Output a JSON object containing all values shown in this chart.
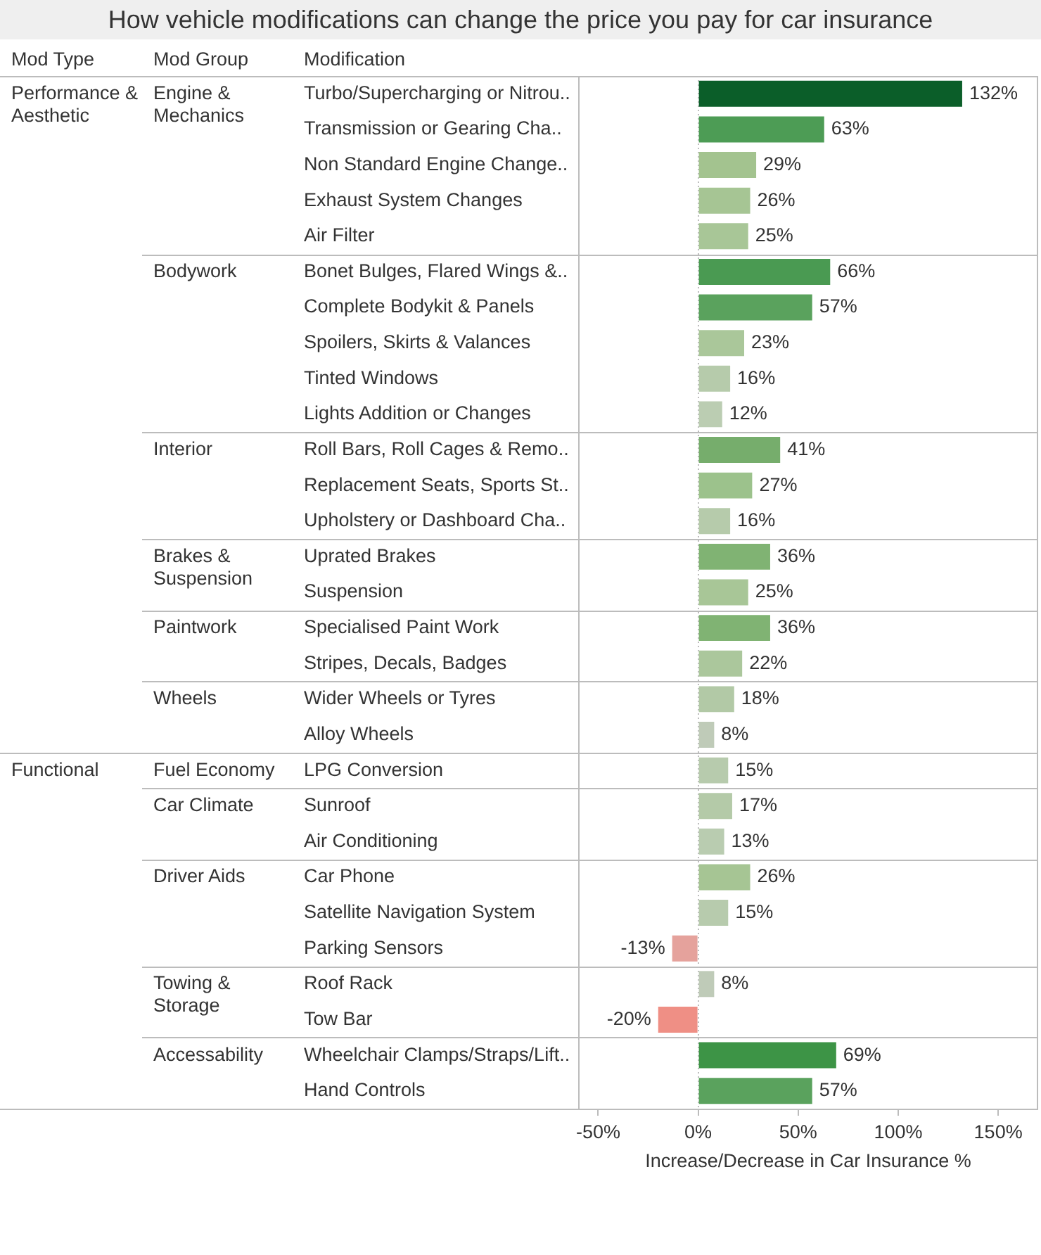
{
  "chart_data": {
    "type": "bar",
    "orientation": "horizontal",
    "title": "How vehicle modifications can change the price you pay for car insurance",
    "xlabel": "Increase/Decrease in Car Insurance %",
    "ylabel": "Modification",
    "categories": [
      "Turbo/Supercharging or Nitrou..",
      "Transmission or Gearing Cha..",
      "Non Standard Engine Change..",
      "Exhaust System Changes",
      "Air Filter",
      "Bonet Bulges, Flared Wings &..",
      "Complete Bodykit & Panels",
      "Spoilers, Skirts & Valances",
      "Tinted Windows",
      "Lights Addition or Changes",
      "Roll Bars, Roll Cages & Remo..",
      "Replacement Seats, Sports St..",
      "Upholstery or Dashboard Cha..",
      "Uprated Brakes",
      "Suspension",
      "Specialised Paint Work",
      "Stripes, Decals, Badges",
      "Wider Wheels or Tyres",
      "Alloy Wheels",
      "LPG Conversion",
      "Sunroof",
      "Air Conditioning",
      "Car Phone",
      "Satellite Navigation System",
      "Parking Sensors",
      "Roof Rack",
      "Tow Bar",
      "Wheelchair Clamps/Straps/Lift..",
      "Hand Controls"
    ],
    "values": [
      132,
      63,
      29,
      26,
      25,
      66,
      57,
      23,
      16,
      12,
      41,
      27,
      16,
      36,
      25,
      36,
      22,
      18,
      8,
      15,
      17,
      13,
      26,
      15,
      -13,
      8,
      -20,
      69,
      57
    ],
    "value_labels": [
      "132%",
      "63%",
      "29%",
      "26%",
      "25%",
      "66%",
      "57%",
      "23%",
      "16%",
      "12%",
      "41%",
      "27%",
      "16%",
      "36%",
      "25%",
      "36%",
      "22%",
      "18%",
      "8%",
      "15%",
      "17%",
      "13%",
      "26%",
      "15%",
      "-13%",
      "8%",
      "-20%",
      "69%",
      "57%"
    ],
    "colors": [
      "#0b5e29",
      "#4d9c55",
      "#a3c38f",
      "#a6c594",
      "#a8c697",
      "#4a9a52",
      "#5aa25d",
      "#aac79a",
      "#b6cbab",
      "#bbcdb2",
      "#76ad6c",
      "#9cc28c",
      "#b6cbab",
      "#80b373",
      "#a8c697",
      "#80b373",
      "#abc79c",
      "#b2c9a6",
      "#bfcbb8",
      "#b7cbad",
      "#b4caa8",
      "#b9ccb0",
      "#a6c594",
      "#b7cbad",
      "#e5a29c",
      "#bfcbb8",
      "#ef8f85",
      "#3d9446",
      "#5aa25d"
    ],
    "xlim": [
      -60,
      170
    ],
    "xticks": [
      {
        "value": -50,
        "label": "-50%"
      },
      {
        "value": 0,
        "label": "0%"
      },
      {
        "value": 50,
        "label": "50%"
      },
      {
        "value": 100,
        "label": "100%"
      },
      {
        "value": 150,
        "label": "150%"
      }
    ],
    "ref_lines": [
      {
        "axis": "x",
        "value": 0,
        "color": "#bdbdbd",
        "line_style": "dotted"
      }
    ],
    "annotations": [
      "Mod Type",
      "Mod Group",
      "Performance & Aesthetic",
      "Engine & Mechanics",
      "Bodywork",
      "Interior",
      "Brakes & Suspension",
      "Paintwork",
      "Wheels",
      "Functional",
      "Fuel Economy",
      "Car Climate",
      "Driver Aids",
      "Towing & Storage",
      "Accessability"
    ]
  }
}
